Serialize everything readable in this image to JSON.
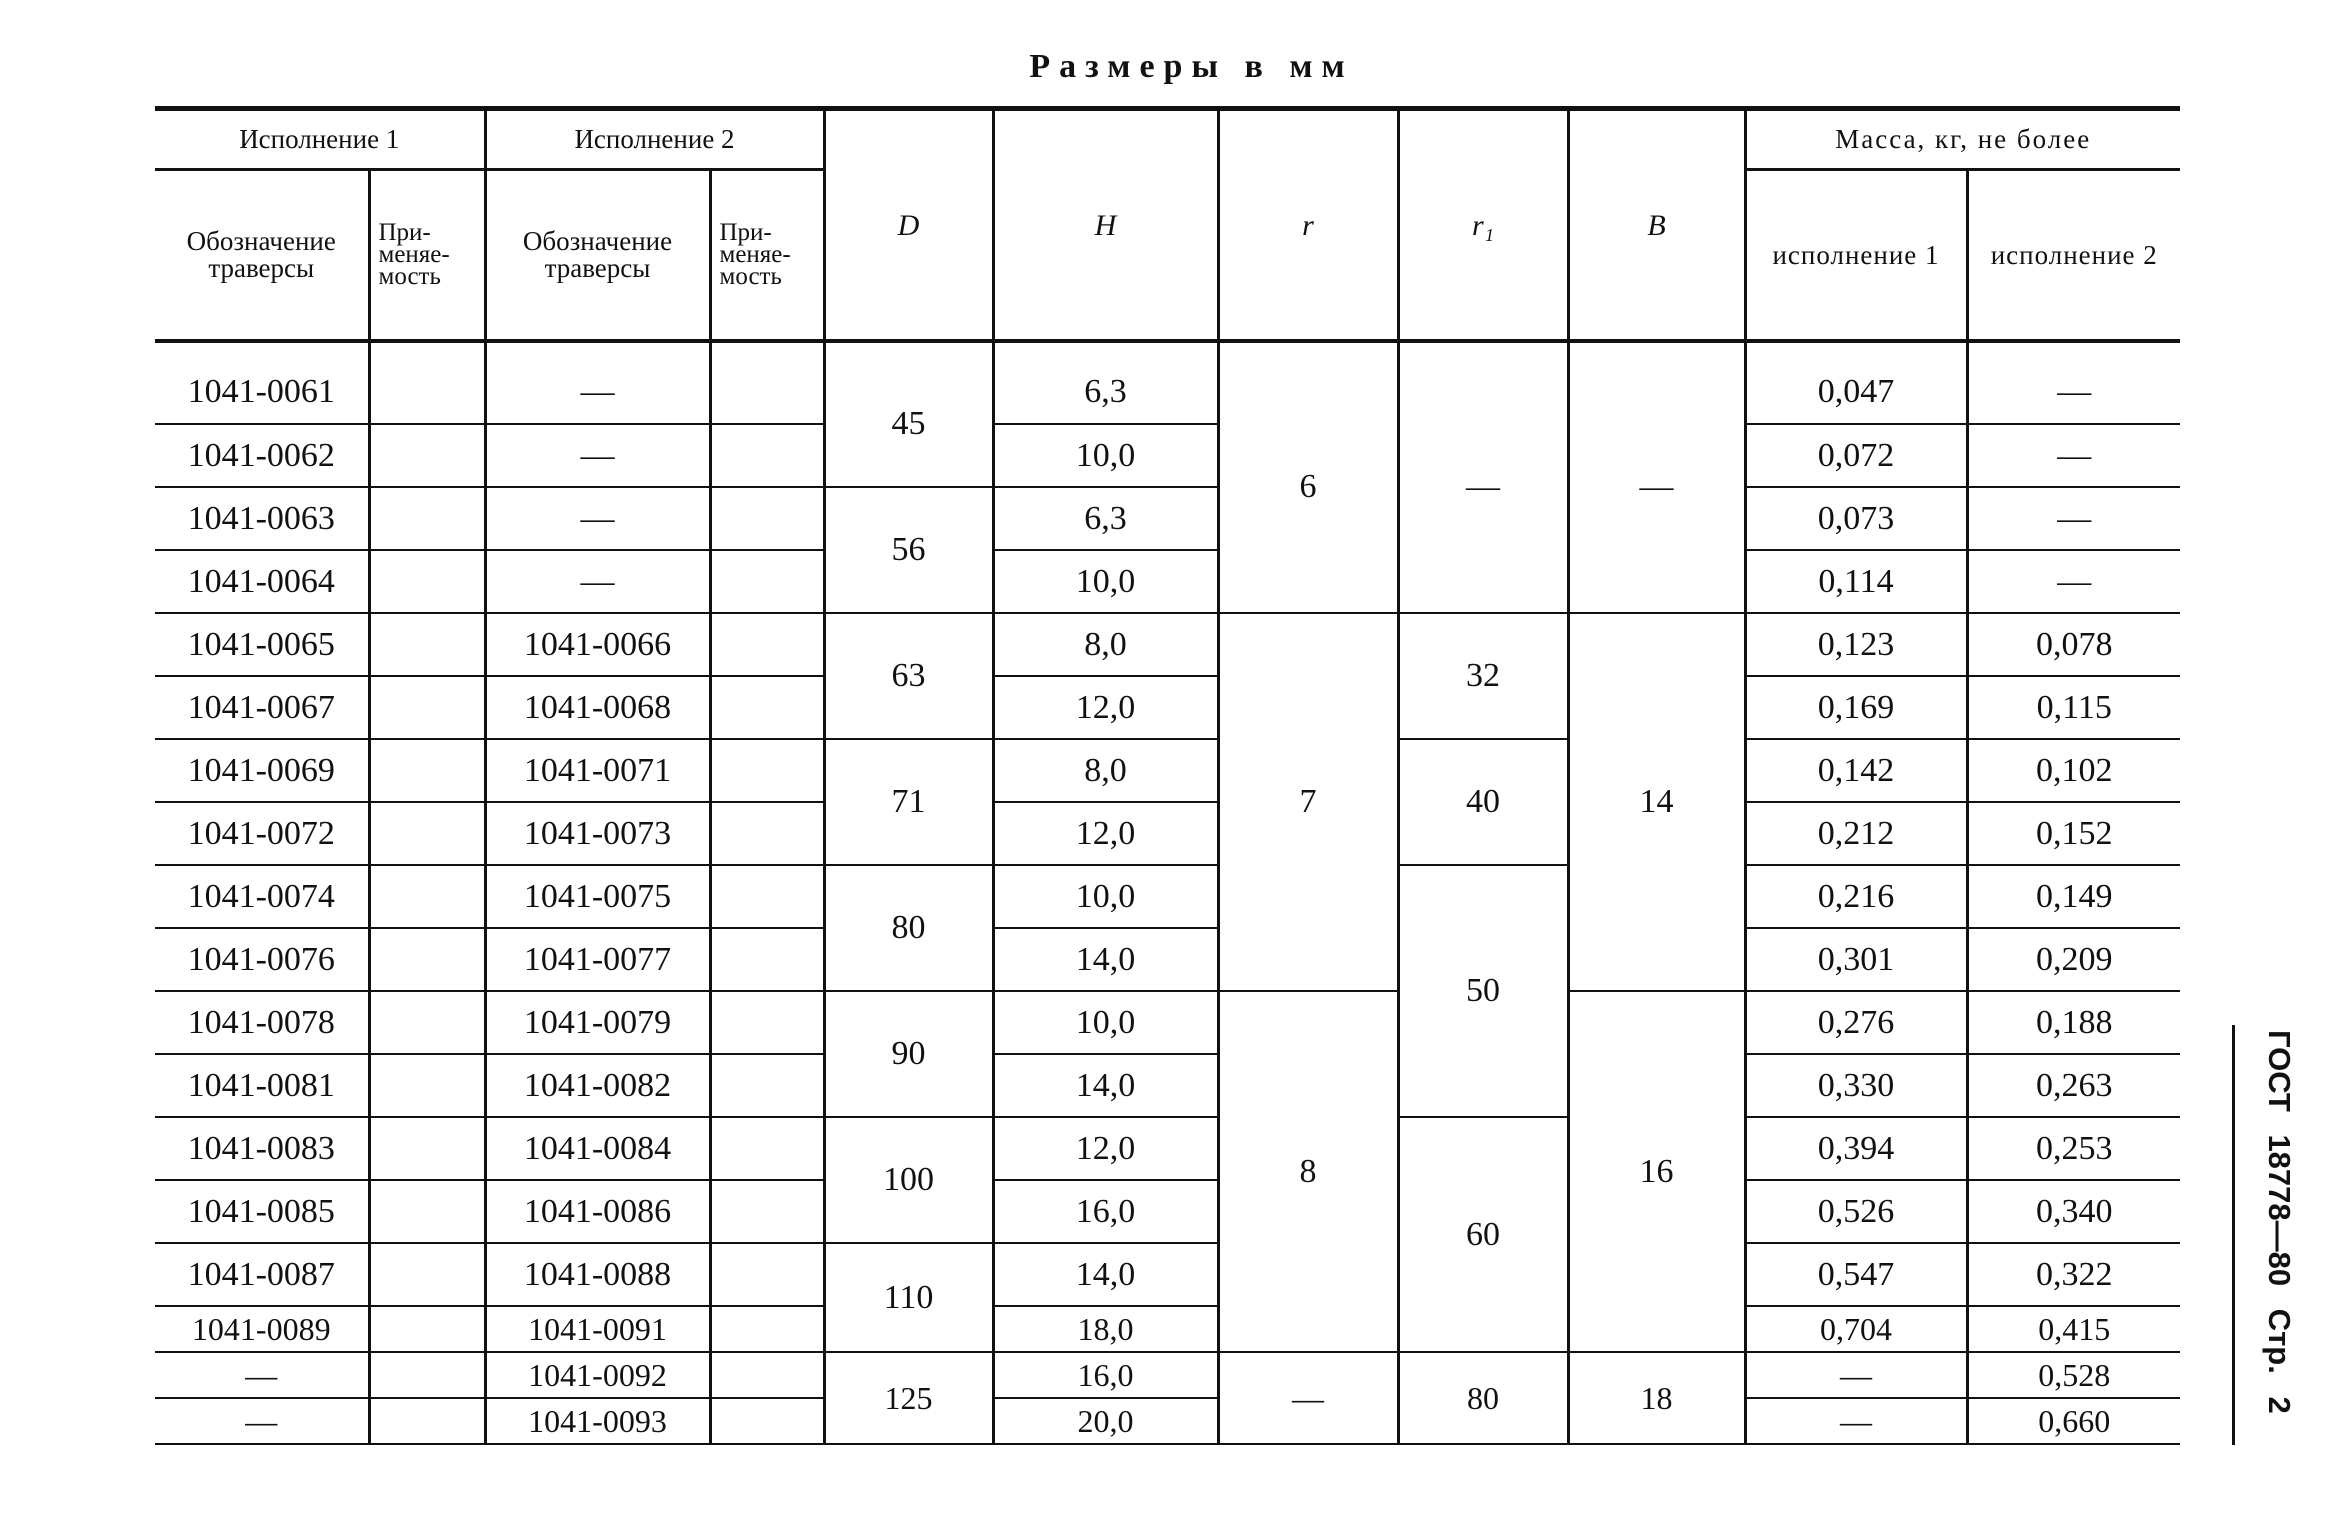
{
  "title": "Размеры в мм",
  "side_caption": "ГОСТ 18778—80 Стр. 2",
  "header": {
    "group1": "Исполнение 1",
    "group2": "Исполнение 2",
    "designation": "Обозначение траверсы",
    "applicability": "При-меняе-мость",
    "D": "D",
    "H": "H",
    "r": "r",
    "r1": "r₁",
    "B": "B",
    "mass": "Масса, кг, не более",
    "mass1": "исполнение 1",
    "mass2": "исполнение 2"
  },
  "rows": [
    {
      "des1": "1041-0061",
      "des2": "—",
      "H": "6,3",
      "m1": "0,047",
      "m2": "—"
    },
    {
      "des1": "1041-0062",
      "des2": "—",
      "H": "10,0",
      "m1": "0,072",
      "m2": "—"
    },
    {
      "des1": "1041-0063",
      "des2": "—",
      "H": "6,3",
      "m1": "0,073",
      "m2": "—"
    },
    {
      "des1": "1041-0064",
      "des2": "—",
      "H": "10,0",
      "m1": "0,114",
      "m2": "—"
    },
    {
      "des1": "1041-0065",
      "des2": "1041-0066",
      "H": "8,0",
      "m1": "0,123",
      "m2": "0,078"
    },
    {
      "des1": "1041-0067",
      "des2": "1041-0068",
      "H": "12,0",
      "m1": "0,169",
      "m2": "0,115"
    },
    {
      "des1": "1041-0069",
      "des2": "1041-0071",
      "H": "8,0",
      "m1": "0,142",
      "m2": "0,102"
    },
    {
      "des1": "1041-0072",
      "des2": "1041-0073",
      "H": "12,0",
      "m1": "0,212",
      "m2": "0,152"
    },
    {
      "des1": "1041-0074",
      "des2": "1041-0075",
      "H": "10,0",
      "m1": "0,216",
      "m2": "0,149"
    },
    {
      "des1": "1041-0076",
      "des2": "1041-0077",
      "H": "14,0",
      "m1": "0,301",
      "m2": "0,209"
    },
    {
      "des1": "1041-0078",
      "des2": "1041-0079",
      "H": "10,0",
      "m1": "0,276",
      "m2": "0,188"
    },
    {
      "des1": "1041-0081",
      "des2": "1041-0082",
      "H": "14,0",
      "m1": "0,330",
      "m2": "0,263"
    },
    {
      "des1": "1041-0083",
      "des2": "1041-0084",
      "H": "12,0",
      "m1": "0,394",
      "m2": "0,253"
    },
    {
      "des1": "1041-0085",
      "des2": "1041-0086",
      "H": "16,0",
      "m1": "0,526",
      "m2": "0,340"
    },
    {
      "des1": "1041-0087",
      "des2": "1041-0088",
      "H": "14,0",
      "m1": "0,547",
      "m2": "0,322"
    },
    {
      "des1": "1041-0089",
      "des2": "1041-0091",
      "H": "18,0",
      "m1": "0,704",
      "m2": "0,415"
    },
    {
      "des1": "—",
      "des2": "1041-0092",
      "H": "16,0",
      "m1": "—",
      "m2": "0,528"
    },
    {
      "des1": "—",
      "des2": "1041-0093",
      "H": "20,0",
      "m1": "—",
      "m2": "0,660"
    }
  ],
  "merged": {
    "D": [
      {
        "v": "45",
        "span": 2
      },
      {
        "v": "56",
        "span": 2
      },
      {
        "v": "63",
        "span": 2
      },
      {
        "v": "71",
        "span": 2
      },
      {
        "v": "80",
        "span": 2
      },
      {
        "v": "90",
        "span": 2
      },
      {
        "v": "100",
        "span": 2
      },
      {
        "v": "110",
        "span": 2
      },
      {
        "v": "125",
        "span": 2
      }
    ],
    "r": [
      {
        "v": "6",
        "span": 4
      },
      {
        "v": "7",
        "span": 6
      },
      {
        "v": "8",
        "span": 6
      },
      {
        "v": "—",
        "span": 2
      }
    ],
    "r1": [
      {
        "v": "—",
        "span": 4
      },
      {
        "v": "32",
        "span": 2
      },
      {
        "v": "40",
        "span": 2
      },
      {
        "v": "50",
        "span": 4
      },
      {
        "v": "60",
        "span": 4
      },
      {
        "v": "80",
        "span": 2
      }
    ],
    "B": [
      {
        "v": "—",
        "span": 4
      },
      {
        "v": "14",
        "span": 6
      },
      {
        "v": "16",
        "span": 6
      },
      {
        "v": "18",
        "span": 2
      }
    ]
  }
}
